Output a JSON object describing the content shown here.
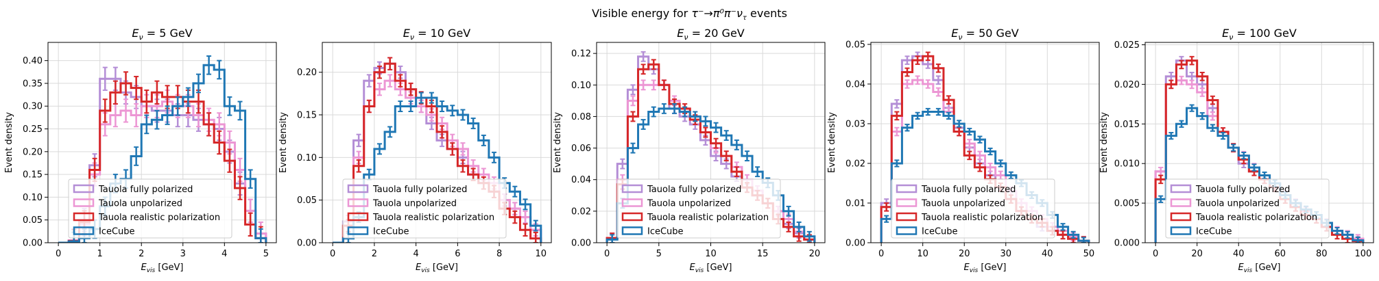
{
  "figure": {
    "suptitle_prefix": "Visible energy for ",
    "suptitle_math": "τ⁻→π⁰π⁻ν",
    "suptitle_sub": "τ",
    "suptitle_suffix": " events"
  },
  "colors": {
    "Tauola fully polarized": "#b48ed6",
    "Tauola unpolarized": "#ec96d4",
    "Tauola realistic polarization": "#d62728",
    "IceCube": "#1f77b4",
    "grid": "#d9d9d9"
  },
  "chart_data": [
    {
      "type": "step-histogram",
      "title": "E_ν = 5 GeV",
      "title_prefix": "E",
      "title_sub": "ν",
      "title_rest": " = 5 GeV",
      "xlabel": "E_vis [GeV]",
      "ylabel": "Event density",
      "xlim": [
        -0.25,
        5.25
      ],
      "ylim": [
        0,
        0.44
      ],
      "xticks": [
        0,
        1,
        2,
        3,
        4,
        5
      ],
      "yticks": [
        0.0,
        0.05,
        0.1,
        0.15,
        0.2,
        0.25,
        0.3,
        0.35,
        0.4
      ],
      "ytick_labels": [
        "0.00",
        "0.05",
        "0.10",
        "0.15",
        "0.20",
        "0.25",
        "0.30",
        "0.35",
        "0.40"
      ],
      "grid": true,
      "legend": "lower-left",
      "bin_edges": [
        0.0,
        0.25,
        0.5,
        0.75,
        1.0,
        1.25,
        1.5,
        1.75,
        2.0,
        2.25,
        2.5,
        2.75,
        3.0,
        3.25,
        3.5,
        3.75,
        4.0,
        4.25,
        4.5,
        4.75,
        5.0
      ],
      "series": [
        {
          "name": "Tauola fully polarized",
          "errors": 0.025,
          "values": [
            0,
            0.005,
            0.05,
            0.17,
            0.36,
            0.36,
            0.33,
            0.32,
            0.3,
            0.29,
            0.29,
            0.28,
            0.28,
            0.27,
            0.26,
            0.25,
            0.2,
            0.13,
            0.07,
            0.02
          ]
        },
        {
          "name": "Tauola unpolarized",
          "errors": 0.025,
          "values": [
            0,
            0.005,
            0.04,
            0.15,
            0.26,
            0.28,
            0.29,
            0.28,
            0.3,
            0.3,
            0.31,
            0.3,
            0.3,
            0.28,
            0.27,
            0.26,
            0.22,
            0.16,
            0.07,
            0.02
          ]
        },
        {
          "name": "Tauola realistic polarization",
          "errors": 0.025,
          "values": [
            0,
            0.004,
            0.045,
            0.16,
            0.29,
            0.33,
            0.35,
            0.34,
            0.31,
            0.33,
            0.32,
            0.32,
            0.31,
            0.31,
            0.26,
            0.22,
            0.18,
            0.12,
            0.04,
            0.01
          ]
        },
        {
          "name": "IceCube",
          "errors": 0.02,
          "values": [
            0,
            0.003,
            0.01,
            0.03,
            0.08,
            0.13,
            0.14,
            0.19,
            0.26,
            0.27,
            0.28,
            0.3,
            0.32,
            0.35,
            0.39,
            0.38,
            0.3,
            0.29,
            0.14,
            0.01
          ]
        }
      ]
    },
    {
      "type": "step-histogram",
      "title": "E_ν = 10 GeV",
      "title_prefix": "E",
      "title_sub": "ν",
      "title_rest": " = 10 GeV",
      "xlabel": "E_vis [GeV]",
      "ylabel": "Event density",
      "xlim": [
        -0.5,
        10.5
      ],
      "ylim": [
        0,
        0.235
      ],
      "xticks": [
        0,
        2,
        4,
        6,
        8,
        10
      ],
      "yticks": [
        0.0,
        0.05,
        0.1,
        0.15,
        0.2
      ],
      "ytick_labels": [
        "0.00",
        "0.05",
        "0.10",
        "0.15",
        "0.20"
      ],
      "grid": true,
      "legend": "lower-left",
      "bin_edges": [
        0.0,
        0.5,
        1.0,
        1.5,
        2.0,
        2.5,
        3.0,
        3.5,
        4.0,
        4.5,
        5.0,
        5.5,
        6.0,
        6.5,
        7.0,
        7.5,
        8.0,
        8.5,
        9.0,
        9.5,
        10.0
      ],
      "series": [
        {
          "name": "Tauola fully polarized",
          "errors": 0.007,
          "values": [
            0,
            0.025,
            0.12,
            0.19,
            0.205,
            0.21,
            0.2,
            0.18,
            0.16,
            0.14,
            0.12,
            0.11,
            0.1,
            0.08,
            0.07,
            0.06,
            0.05,
            0.04,
            0.03,
            0.015
          ]
        },
        {
          "name": "Tauola unpolarized",
          "errors": 0.007,
          "values": [
            0,
            0.02,
            0.1,
            0.16,
            0.18,
            0.19,
            0.18,
            0.17,
            0.16,
            0.15,
            0.14,
            0.12,
            0.11,
            0.09,
            0.08,
            0.07,
            0.05,
            0.04,
            0.03,
            0.015
          ]
        },
        {
          "name": "Tauola realistic polarization",
          "errors": 0.007,
          "values": [
            0,
            0.02,
            0.09,
            0.16,
            0.2,
            0.21,
            0.19,
            0.18,
            0.17,
            0.16,
            0.13,
            0.11,
            0.09,
            0.08,
            0.07,
            0.06,
            0.04,
            0.03,
            0.015,
            0.005
          ]
        },
        {
          "name": "IceCube",
          "errors": 0.006,
          "values": [
            0,
            0.005,
            0.03,
            0.08,
            0.11,
            0.13,
            0.16,
            0.16,
            0.17,
            0.17,
            0.16,
            0.155,
            0.15,
            0.14,
            0.12,
            0.1,
            0.07,
            0.06,
            0.045,
            0.02
          ]
        }
      ]
    },
    {
      "type": "step-histogram",
      "title": "E_ν = 20 GeV",
      "title_prefix": "E",
      "title_sub": "ν",
      "title_rest": " = 20 GeV",
      "xlabel": "E_vis [GeV]",
      "ylabel": "Event density",
      "xlim": [
        -1,
        21
      ],
      "ylim": [
        0,
        0.127
      ],
      "xticks": [
        0,
        5,
        10,
        15,
        20
      ],
      "yticks": [
        0.0,
        0.02,
        0.04,
        0.06,
        0.08,
        0.1,
        0.12
      ],
      "ytick_labels": [
        "0.00",
        "0.02",
        "0.04",
        "0.06",
        "0.08",
        "0.10",
        "0.12"
      ],
      "grid": true,
      "legend": "lower-left",
      "bin_edges": [
        0,
        1,
        2,
        3,
        4,
        5,
        6,
        7,
        8,
        9,
        10,
        11,
        12,
        13,
        14,
        15,
        16,
        17,
        18,
        19,
        20
      ],
      "series": [
        {
          "name": "Tauola fully polarized",
          "errors": 0.003,
          "values": [
            0.003,
            0.05,
            0.097,
            0.118,
            0.11,
            0.1,
            0.085,
            0.08,
            0.075,
            0.065,
            0.055,
            0.05,
            0.042,
            0.035,
            0.03,
            0.025,
            0.02,
            0.012,
            0.006,
            0.002
          ]
        },
        {
          "name": "Tauola unpolarized",
          "errors": 0.003,
          "values": [
            0.003,
            0.04,
            0.09,
            0.1,
            0.1,
            0.1,
            0.09,
            0.085,
            0.08,
            0.07,
            0.06,
            0.055,
            0.048,
            0.04,
            0.033,
            0.025,
            0.02,
            0.015,
            0.007,
            0.002
          ]
        },
        {
          "name": "Tauola realistic polarization",
          "errors": 0.003,
          "values": [
            0.003,
            0.037,
            0.08,
            0.11,
            0.113,
            0.1,
            0.088,
            0.085,
            0.078,
            0.07,
            0.063,
            0.055,
            0.045,
            0.035,
            0.03,
            0.025,
            0.015,
            0.01,
            0.004,
            0.002
          ]
        },
        {
          "name": "IceCube",
          "errors": 0.003,
          "values": [
            0.002,
            0.025,
            0.06,
            0.075,
            0.083,
            0.085,
            0.085,
            0.083,
            0.08,
            0.077,
            0.073,
            0.068,
            0.062,
            0.055,
            0.045,
            0.038,
            0.03,
            0.02,
            0.01,
            0.004
          ]
        }
      ]
    },
    {
      "type": "step-histogram",
      "title": "E_ν = 50 GeV",
      "title_prefix": "E",
      "title_sub": "ν",
      "title_rest": " = 50 GeV",
      "xlabel": "E_vis [GeV]",
      "ylabel": "Event density",
      "xlim": [
        -2.5,
        52.5
      ],
      "ylim": [
        0,
        0.0505
      ],
      "xticks": [
        0,
        10,
        20,
        30,
        40,
        50
      ],
      "yticks": [
        0.0,
        0.01,
        0.02,
        0.03,
        0.04,
        0.05
      ],
      "ytick_labels": [
        "0.00",
        "0.01",
        "0.02",
        "0.03",
        "0.04",
        "0.05"
      ],
      "grid": true,
      "legend": "lower-left",
      "bin_edges": [
        0,
        2.5,
        5,
        7.5,
        10,
        12.5,
        15,
        17.5,
        20,
        22.5,
        25,
        27.5,
        30,
        32.5,
        35,
        37.5,
        40,
        42.5,
        45,
        47.5,
        50
      ],
      "series": [
        {
          "name": "Tauola fully polarized",
          "errors": 0.001,
          "values": [
            0.01,
            0.035,
            0.046,
            0.047,
            0.045,
            0.041,
            0.034,
            0.029,
            0.024,
            0.02,
            0.017,
            0.014,
            0.011,
            0.008,
            0.006,
            0.004,
            0.003,
            0.002,
            0.001,
            0.0005
          ]
        },
        {
          "name": "Tauola unpolarized",
          "errors": 0.001,
          "values": [
            0.009,
            0.028,
            0.04,
            0.041,
            0.04,
            0.038,
            0.033,
            0.028,
            0.025,
            0.022,
            0.019,
            0.017,
            0.013,
            0.01,
            0.008,
            0.006,
            0.004,
            0.003,
            0.0015,
            0.0005
          ]
        },
        {
          "name": "Tauola realistic polarization",
          "errors": 0.001,
          "values": [
            0.009,
            0.032,
            0.043,
            0.046,
            0.047,
            0.044,
            0.036,
            0.028,
            0.022,
            0.019,
            0.016,
            0.014,
            0.011,
            0.008,
            0.006,
            0.005,
            0.003,
            0.002,
            0.001,
            0.0005
          ]
        },
        {
          "name": "IceCube",
          "errors": 0.0008,
          "values": [
            0.006,
            0.02,
            0.029,
            0.032,
            0.033,
            0.033,
            0.032,
            0.03,
            0.028,
            0.026,
            0.023,
            0.02,
            0.017,
            0.015,
            0.012,
            0.01,
            0.007,
            0.004,
            0.002,
            0.0005
          ]
        }
      ]
    },
    {
      "type": "step-histogram",
      "title": "E_ν = 100 GeV",
      "title_prefix": "E",
      "title_sub": "ν",
      "title_rest": " = 100 GeV",
      "xlabel": "E_vis [GeV]",
      "ylabel": "Event density",
      "xlim": [
        -5,
        105
      ],
      "ylim": [
        0,
        0.0253
      ],
      "xticks": [
        0,
        20,
        40,
        60,
        80,
        100
      ],
      "yticks": [
        0.0,
        0.005,
        0.01,
        0.015,
        0.02,
        0.025
      ],
      "ytick_labels": [
        "0.000",
        "0.005",
        "0.010",
        "0.015",
        "0.020",
        "0.025"
      ],
      "grid": true,
      "legend": "lower-left",
      "bin_edges": [
        0,
        5,
        10,
        15,
        20,
        25,
        30,
        35,
        40,
        45,
        50,
        55,
        60,
        65,
        70,
        75,
        80,
        85,
        90,
        95,
        100
      ],
      "series": [
        {
          "name": "Tauola fully polarized",
          "errors": 0.0005,
          "values": [
            0.009,
            0.021,
            0.023,
            0.021,
            0.02,
            0.017,
            0.014,
            0.012,
            0.01,
            0.009,
            0.008,
            0.007,
            0.006,
            0.005,
            0.004,
            0.003,
            0.002,
            0.0015,
            0.001,
            0.0005
          ]
        },
        {
          "name": "Tauola unpolarized",
          "errors": 0.0005,
          "values": [
            0.009,
            0.02,
            0.0205,
            0.02,
            0.019,
            0.016,
            0.014,
            0.012,
            0.011,
            0.0095,
            0.008,
            0.007,
            0.006,
            0.005,
            0.004,
            0.003,
            0.0025,
            0.0015,
            0.001,
            0.0005
          ]
        },
        {
          "name": "Tauola realistic polarization",
          "errors": 0.0005,
          "values": [
            0.008,
            0.02,
            0.0225,
            0.023,
            0.021,
            0.018,
            0.014,
            0.012,
            0.0105,
            0.009,
            0.008,
            0.007,
            0.0055,
            0.0045,
            0.0035,
            0.003,
            0.002,
            0.001,
            0.0005,
            0.0002
          ]
        },
        {
          "name": "IceCube",
          "errors": 0.0004,
          "values": [
            0.0055,
            0.0135,
            0.015,
            0.017,
            0.016,
            0.0145,
            0.0135,
            0.012,
            0.011,
            0.0095,
            0.0085,
            0.0075,
            0.006,
            0.005,
            0.0042,
            0.0035,
            0.0025,
            0.0015,
            0.001,
            0.0003
          ]
        }
      ]
    }
  ]
}
